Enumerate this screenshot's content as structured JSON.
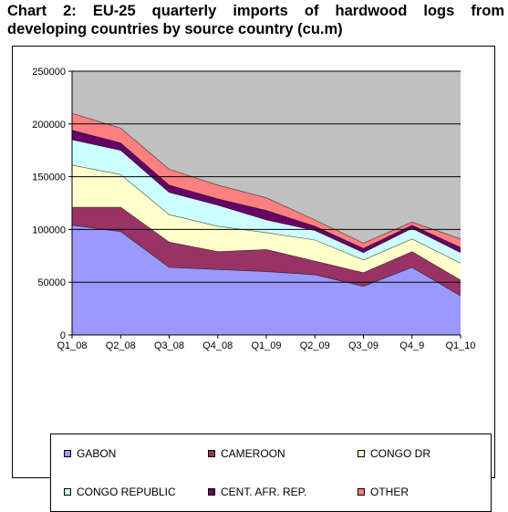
{
  "title_line1": "Chart 2: EU-25 quarterly imports of hardwood logs from",
  "title_line2": "developing countries by source country (cu.m)",
  "chart_data": {
    "type": "area",
    "stacked": true,
    "categories": [
      "Q1_08",
      "Q2_08",
      "Q3_08",
      "Q4_08",
      "Q1_09",
      "Q2_09",
      "Q3_09",
      "Q4_9",
      "Q1_10"
    ],
    "ylim": [
      0,
      250000
    ],
    "yticks": [
      0,
      50000,
      100000,
      150000,
      200000,
      250000
    ],
    "grid": true,
    "plot_background": "#c0c0c0",
    "legend_position": "bottom",
    "series": [
      {
        "name": "GABON",
        "color": "#9999ff",
        "values": [
          104000,
          98000,
          64000,
          62000,
          60000,
          57000,
          46000,
          64000,
          37000
        ]
      },
      {
        "name": "CAMEROON",
        "color": "#993366",
        "values": [
          17000,
          23000,
          24000,
          17000,
          21000,
          13000,
          13000,
          15000,
          15000
        ]
      },
      {
        "name": "CONGO DR",
        "color": "#ffffcc",
        "values": [
          40000,
          31000,
          26000,
          24000,
          16000,
          20000,
          12000,
          12000,
          16000
        ]
      },
      {
        "name": "CONGO REPUBLIC",
        "color": "#ccffff",
        "values": [
          24000,
          23000,
          21000,
          20000,
          12000,
          9000,
          7000,
          10000,
          10000
        ]
      },
      {
        "name": "CENT. AFR. REP.",
        "color": "#660066",
        "values": [
          9000,
          7000,
          7000,
          6000,
          9000,
          4000,
          4000,
          3000,
          5000
        ]
      },
      {
        "name": "OTHER",
        "color": "#ff8080",
        "values": [
          16000,
          14000,
          15000,
          13000,
          12000,
          6000,
          5000,
          3000,
          8000
        ]
      }
    ]
  }
}
